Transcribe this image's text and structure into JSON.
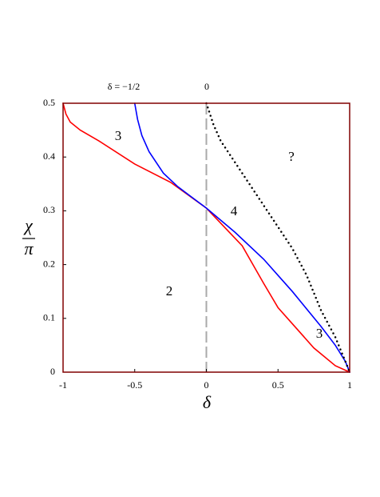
{
  "chart_data": {
    "type": "line",
    "xlabel": "δ",
    "ylabel_numerator": "χ",
    "ylabel_denominator": "π",
    "xlim": [
      -1,
      1
    ],
    "ylim": [
      0,
      0.5
    ],
    "xticks": [
      -1,
      -0.5,
      0,
      0.5,
      1
    ],
    "yticks": [
      0,
      0.1,
      0.2,
      0.3,
      0.4,
      0.5
    ],
    "frame_color": "#800000",
    "reference_line": {
      "x": 0,
      "color": "#aaaaaa",
      "dash": true
    },
    "series": [
      {
        "color": "#ff0000",
        "style": "solid",
        "x": [
          -1,
          -0.98,
          -0.95,
          -0.88,
          -0.75,
          -0.5,
          -0.25,
          0,
          0.25,
          0.4,
          0.5,
          0.75,
          0.9,
          1
        ],
        "values": [
          0.5,
          0.48,
          0.465,
          0.45,
          0.43,
          0.387,
          0.353,
          0.305,
          0.235,
          0.165,
          0.12,
          0.045,
          0.012,
          0
        ]
      },
      {
        "color": "#0000ff",
        "style": "solid",
        "x": [
          -0.5,
          -0.48,
          -0.45,
          -0.4,
          -0.3,
          -0.2,
          -0.1,
          0,
          0.2,
          0.4,
          0.5,
          0.6,
          0.8,
          0.9,
          0.97,
          1
        ],
        "values": [
          0.5,
          0.47,
          0.44,
          0.41,
          0.37,
          0.345,
          0.325,
          0.305,
          0.26,
          0.21,
          0.18,
          0.15,
          0.085,
          0.05,
          0.02,
          0
        ]
      },
      {
        "color": "#000000",
        "style": "dotted",
        "x": [
          0,
          0.05,
          0.1,
          0.2,
          0.3,
          0.4,
          0.5,
          0.6,
          0.7,
          0.8,
          0.9,
          0.97,
          1
        ],
        "values": [
          0.5,
          0.46,
          0.43,
          0.39,
          0.35,
          0.31,
          0.27,
          0.23,
          0.18,
          0.115,
          0.065,
          0.02,
          0
        ]
      }
    ],
    "annotations": [
      "δ = −1/2",
      "0",
      "3",
      "?",
      "4",
      "2",
      "3"
    ]
  }
}
